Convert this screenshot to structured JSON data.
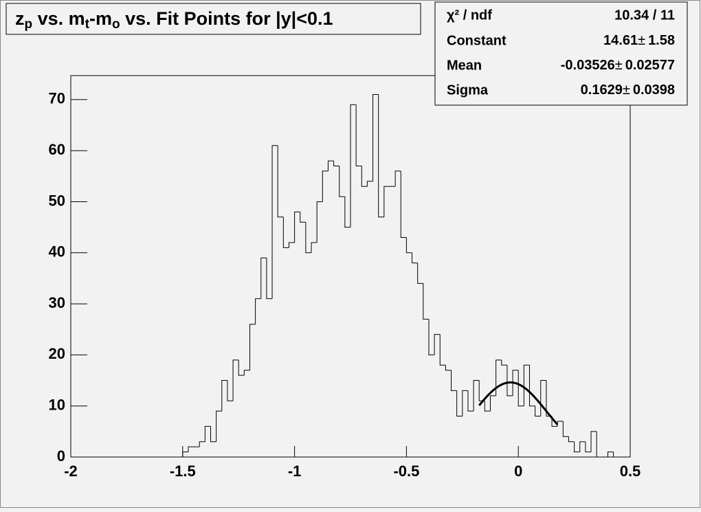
{
  "chart_data": {
    "type": "histogram",
    "title_parts": [
      {
        "text": "z",
        "sub": false
      },
      {
        "text": "p",
        "sub": true
      },
      {
        "text": " vs. m",
        "sub": false
      },
      {
        "text": "t",
        "sub": true
      },
      {
        "text": "-m",
        "sub": false
      },
      {
        "text": "o",
        "sub": true
      },
      {
        "text": " vs. Fit Points for |y|<0.1",
        "sub": false
      }
    ],
    "bins": [
      -2,
      -1.975,
      -1.95,
      -1.925,
      -1.9,
      -1.875,
      -1.85,
      -1.825,
      -1.8,
      -1.775,
      -1.75,
      -1.725,
      -1.7,
      -1.675,
      -1.65,
      -1.625,
      -1.6,
      -1.575,
      -1.55,
      -1.525,
      -1.5,
      -1.475,
      -1.45,
      -1.425,
      -1.4,
      -1.375,
      -1.35,
      -1.325,
      -1.3,
      -1.275,
      -1.25,
      -1.225,
      -1.2,
      -1.175,
      -1.15,
      -1.125,
      -1.1,
      -1.075,
      -1.05,
      -1.025,
      -1,
      -0.975,
      -0.95,
      -0.925,
      -0.9,
      -0.875,
      -0.85,
      -0.825,
      -0.8,
      -0.775,
      -0.75,
      -0.725,
      -0.7,
      -0.675,
      -0.65,
      -0.625,
      -0.6,
      -0.575,
      -0.55,
      -0.525,
      -0.5,
      -0.475,
      -0.45,
      -0.425,
      -0.4,
      -0.375,
      -0.35,
      -0.325,
      -0.3,
      -0.275,
      -0.25,
      -0.225,
      -0.2,
      -0.175,
      -0.15,
      -0.125,
      -0.1,
      -0.075,
      -0.05,
      -0.025,
      0,
      0.025,
      0.05,
      0.075,
      0.1,
      0.125,
      0.15,
      0.175,
      0.2,
      0.225,
      0.25,
      0.275,
      0.3,
      0.325,
      0.35,
      0.375,
      0.4,
      0.425,
      0.45,
      0.475,
      0.5
    ],
    "values": [
      0,
      0,
      0,
      0,
      0,
      0,
      0,
      0,
      0,
      0,
      0,
      0,
      0,
      0,
      0,
      0,
      0,
      0,
      0,
      0,
      1,
      2,
      2,
      3,
      6,
      3,
      9,
      15,
      11,
      19,
      16,
      17,
      26,
      31,
      39,
      31,
      61,
      47,
      41,
      42,
      48,
      46,
      40,
      42,
      50,
      56,
      58,
      57,
      51,
      45,
      69,
      57,
      53,
      54,
      71,
      47,
      53,
      53,
      56,
      43,
      40,
      38,
      34,
      27,
      20,
      24,
      18,
      17,
      13,
      8,
      13,
      9,
      15,
      11,
      9,
      12,
      19,
      18,
      12,
      17,
      10,
      18,
      10,
      8,
      15,
      8,
      6,
      7,
      4,
      3,
      1,
      3,
      1,
      5,
      0,
      0,
      1,
      0,
      0,
      0
    ],
    "color": "#000000",
    "xlim": [
      -2,
      0.5
    ],
    "xticks": [
      -2,
      -1.5,
      -1,
      -0.5,
      0,
      0.5
    ],
    "ylim": [
      0,
      74.7
    ],
    "yticks": [
      0,
      10,
      20,
      30,
      40,
      50,
      60,
      70
    ],
    "fit": {
      "function": "gaus",
      "range": [
        -0.175,
        0.175
      ],
      "color": "#000000"
    },
    "stats": {
      "chi2_label": "χ² / ndf",
      "chi2_value": "10.34 / 11",
      "plus_minus": "±",
      "rows": [
        {
          "label": "Constant",
          "value": 14.61,
          "error": 1.58
        },
        {
          "label": "Mean",
          "value": -0.03526,
          "error": 0.02577
        },
        {
          "label": "Sigma",
          "value": 0.1629,
          "error": 0.0398
        }
      ]
    }
  }
}
